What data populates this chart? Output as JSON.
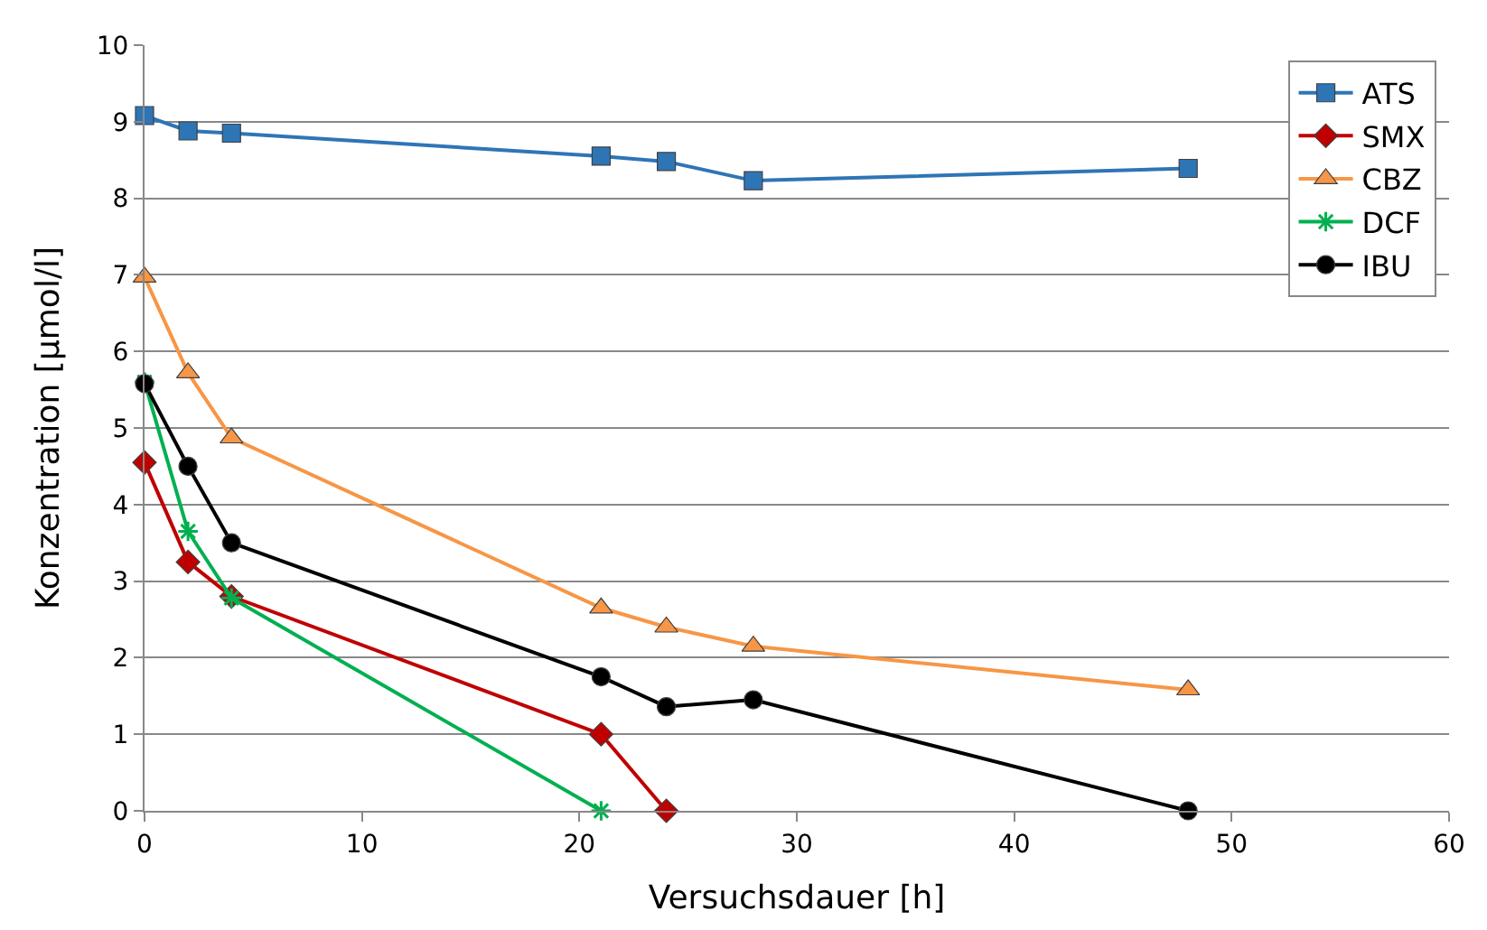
{
  "chart_data": {
    "type": "line",
    "xlabel": "Versuchsdauer [h]",
    "ylabel": "Konzentration [µmol/l]",
    "xlim": [
      0,
      60
    ],
    "xticks": [
      0,
      10,
      20,
      30,
      40,
      50,
      60
    ],
    "ylim": [
      0,
      10
    ],
    "yticks": [
      0,
      1,
      2,
      3,
      4,
      5,
      6,
      7,
      8,
      9,
      10
    ],
    "grid": "y",
    "legend": "top right",
    "series": [
      {
        "name": "ATS",
        "color": "#2e75b6",
        "marker": "square",
        "x": [
          0,
          2,
          4,
          21,
          24,
          28,
          48
        ],
        "values": [
          9.08,
          8.88,
          8.85,
          8.55,
          8.48,
          8.23,
          8.39
        ]
      },
      {
        "name": "SMX",
        "color": "#c00000",
        "marker": "diamond",
        "x": [
          0,
          2,
          4,
          21,
          24
        ],
        "values": [
          4.55,
          3.25,
          2.8,
          1.0,
          0
        ]
      },
      {
        "name": "CBZ",
        "color": "#f79646",
        "marker": "triangle",
        "x": [
          0,
          2,
          4,
          21,
          24,
          28,
          48
        ],
        "values": [
          6.97,
          5.72,
          4.87,
          2.65,
          2.4,
          2.15,
          1.58
        ]
      },
      {
        "name": "DCF",
        "color": "#00b050",
        "marker": "cross",
        "x": [
          0,
          2,
          4,
          21
        ],
        "values": [
          5.6,
          3.65,
          2.78,
          0
        ]
      },
      {
        "name": "IBU",
        "color": "#000000",
        "marker": "circle",
        "x": [
          0,
          2,
          4,
          21,
          24,
          28,
          48
        ],
        "values": [
          5.58,
          4.5,
          3.5,
          1.75,
          1.36,
          1.45,
          0
        ]
      }
    ]
  }
}
